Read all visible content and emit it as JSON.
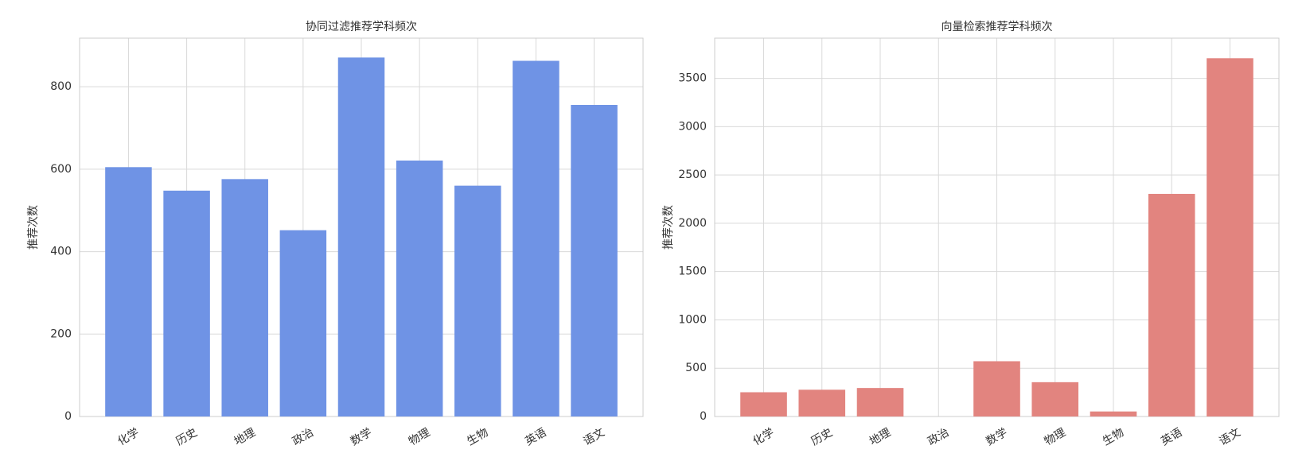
{
  "chart_data": [
    {
      "type": "bar",
      "title": "协同过滤推荐学科频次",
      "y_label": "推荐次数",
      "categories": [
        "化学",
        "历史",
        "地理",
        "政治",
        "数学",
        "物理",
        "生物",
        "英语",
        "语文"
      ],
      "values": [
        605,
        548,
        576,
        452,
        871,
        621,
        560,
        863,
        756
      ],
      "color": "#6f93e5",
      "ylim": [
        0,
        918
      ],
      "yticks": [
        0,
        200,
        400,
        600,
        800
      ],
      "grid": true
    },
    {
      "type": "bar",
      "title": "向量检索推荐学科频次",
      "y_label": "推荐次数",
      "categories": [
        "化学",
        "历史",
        "地理",
        "政治",
        "数学",
        "物理",
        "生物",
        "英语",
        "语文"
      ],
      "values": [
        251,
        277,
        295,
        0,
        572,
        355,
        52,
        2304,
        3708
      ],
      "color": "#e2847f",
      "ylim": [
        0,
        3916
      ],
      "yticks": [
        0,
        500,
        1000,
        1500,
        2000,
        2500,
        3000,
        3500
      ],
      "grid": true
    }
  ]
}
